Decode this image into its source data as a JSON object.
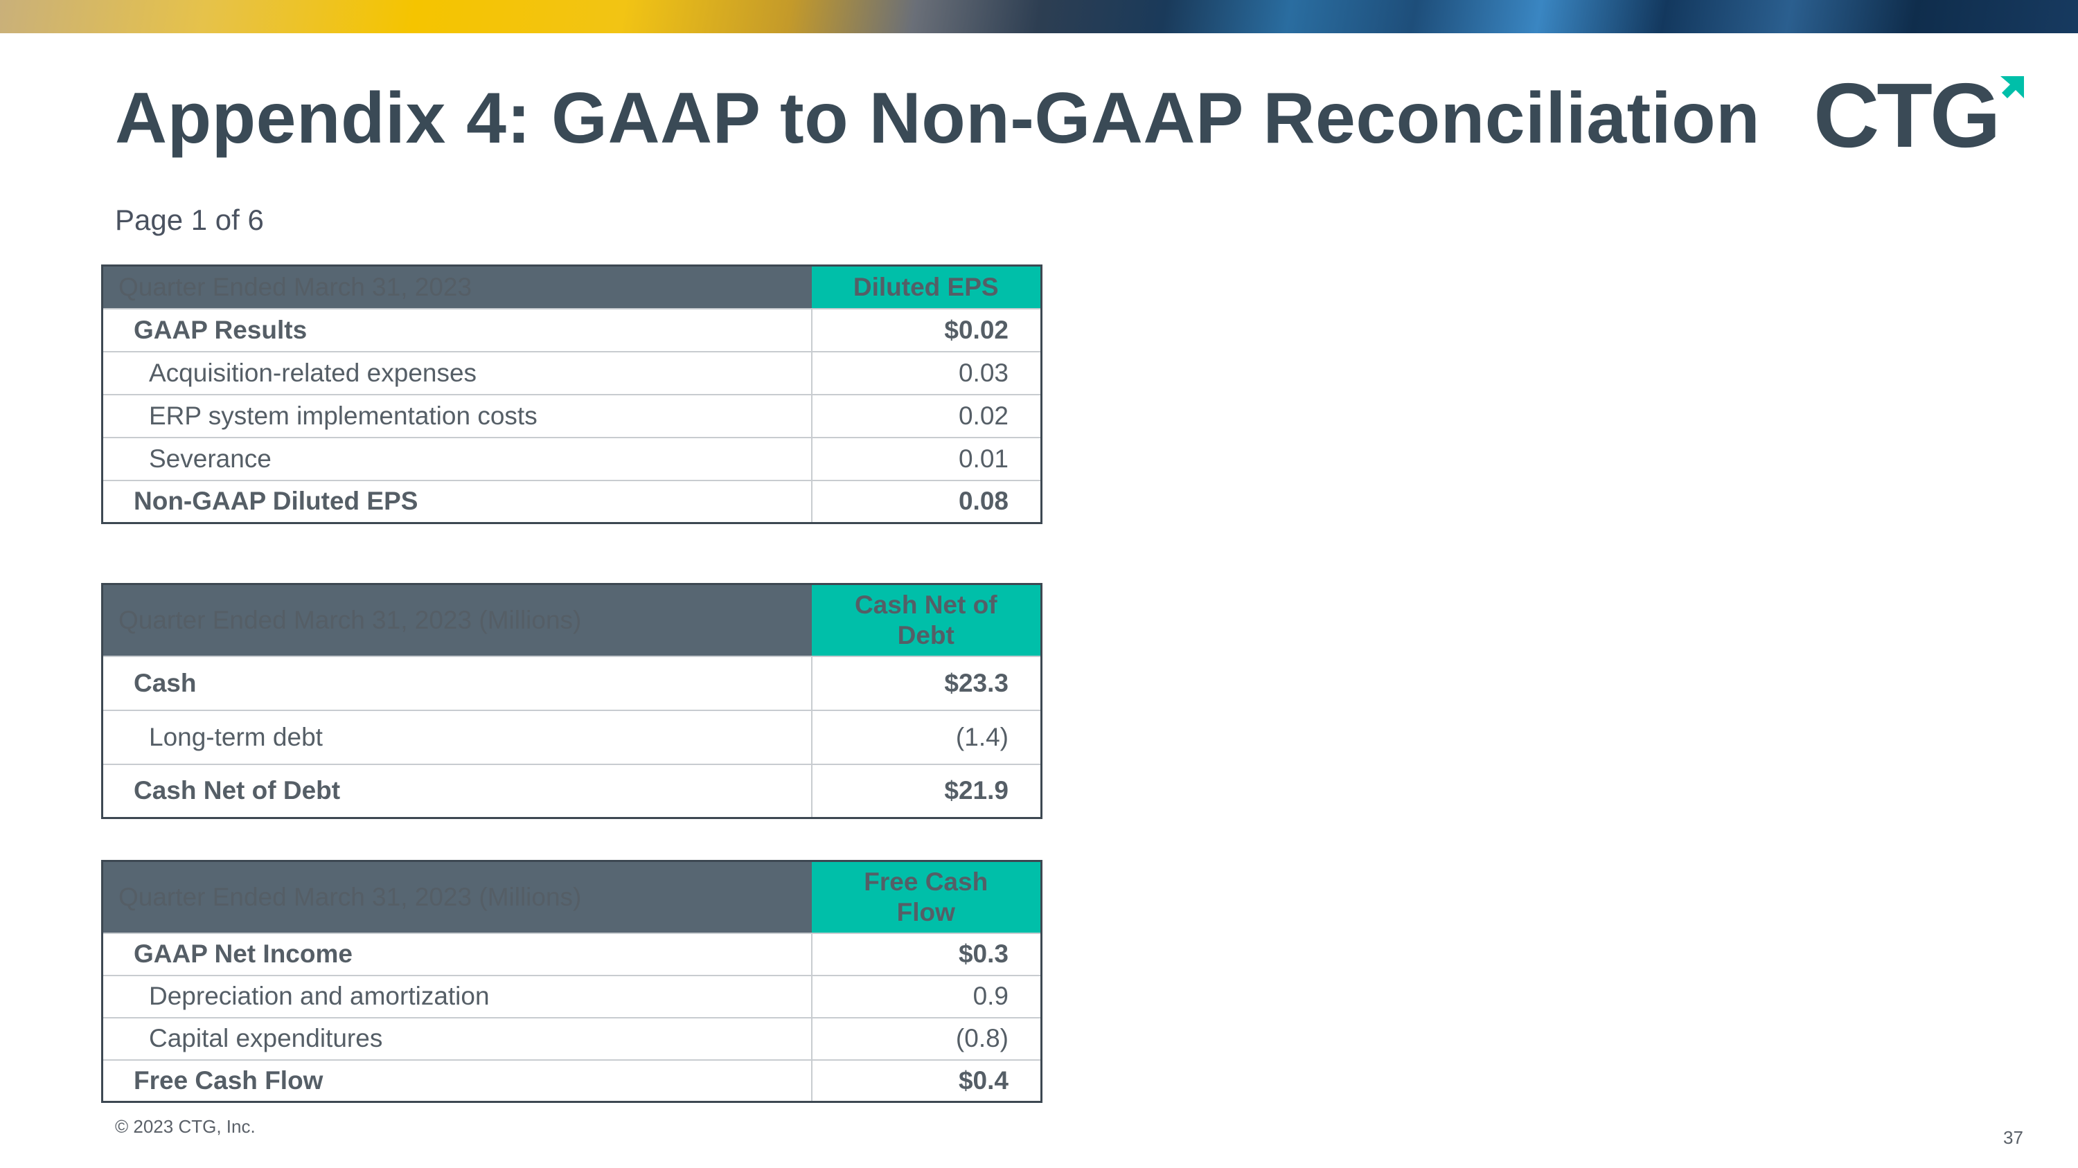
{
  "slide": {
    "title": "Appendix 4: GAAP to Non-GAAP Reconciliation",
    "page_label": "Page 1 of 6",
    "logo_text": "CTG",
    "copyright": "© 2023 CTG, Inc.",
    "page_number": "37"
  },
  "colors": {
    "title": "#3a4a56",
    "header_dark": "#576672",
    "header_accent": "#00bfa9",
    "border": "#3d4852"
  },
  "tables": [
    {
      "header_label": "Quarter Ended March 31, 2023",
      "header_value": "Diluted EPS",
      "rows": [
        {
          "label": "GAAP Results",
          "value": "$0.02"
        },
        {
          "label": "Acquisition-related expenses",
          "value": "0.03"
        },
        {
          "label": "ERP system implementation costs",
          "value": "0.02"
        },
        {
          "label": "Severance",
          "value": "0.01"
        },
        {
          "label": "Non-GAAP Diluted EPS",
          "value": "0.08"
        }
      ]
    },
    {
      "header_label": "Quarter Ended March 31, 2023 (Millions)",
      "header_value": "Cash Net of Debt",
      "rows": [
        {
          "label": "Cash",
          "value": "$23.3"
        },
        {
          "label": "Long-term debt",
          "value": "(1.4)"
        },
        {
          "label": "Cash Net of Debt",
          "value": "$21.9"
        }
      ]
    },
    {
      "header_label": "Quarter Ended March 31, 2023 (Millions)",
      "header_value": "Free Cash Flow",
      "rows": [
        {
          "label": "GAAP Net Income",
          "value": "$0.3"
        },
        {
          "label": "Depreciation and amortization",
          "value": "0.9"
        },
        {
          "label": "Capital expenditures",
          "value": "(0.8)"
        },
        {
          "label": "Free Cash Flow",
          "value": "$0.4"
        }
      ]
    }
  ]
}
